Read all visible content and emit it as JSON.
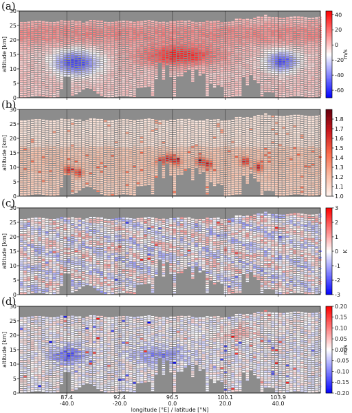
{
  "figure": {
    "shared_x": {
      "label": "longitude [°E] / latitude [°N]",
      "ticks": [
        {
          "longitude": "87.4",
          "latitude": "-40.0"
        },
        {
          "longitude": "92.4",
          "latitude": "-20.0"
        },
        {
          "longitude": "96.5",
          "latitude": "0.0"
        },
        {
          "longitude": "100.1",
          "latitude": "20.0"
        },
        {
          "longitude": "103.9",
          "latitude": "40.0"
        }
      ]
    }
  },
  "colors": {
    "background_missing": "#8c8c8c",
    "grid": "#333333"
  },
  "chart_data": [
    {
      "type": "heatmap",
      "panel": "(a)",
      "ylabel": "altitude [km]",
      "ylim": [
        0,
        30
      ],
      "yticks": [
        0,
        5,
        10,
        15,
        20,
        25,
        30
      ],
      "colormap": "bwr",
      "colorbar": {
        "label": "m/s",
        "vmin": -70,
        "vmax": 45,
        "ticks": [
          40,
          20,
          0,
          -20,
          -40,
          -60
        ]
      },
      "features": [
        {
          "description": "negative core",
          "x_lat": -37,
          "alt_km": 12,
          "value": -55
        },
        {
          "description": "positive core",
          "x_lat": 2,
          "alt_km": 14.5,
          "value": 35
        },
        {
          "description": "negative core",
          "x_lat": 40,
          "alt_km": 12.5,
          "value": -50
        }
      ]
    },
    {
      "type": "heatmap",
      "panel": "(b)",
      "ylabel": "altitude [km]",
      "ylim": [
        0,
        30
      ],
      "yticks": [
        0,
        5,
        10,
        15,
        20,
        25,
        30
      ],
      "colormap": "Reds",
      "colorbar": {
        "label": "",
        "vmin": 1.0,
        "vmax": 1.9,
        "ticks": [
          1.8,
          1.7,
          1.6,
          1.5,
          1.4,
          1.3,
          1.2,
          1.1,
          1.0
        ]
      }
    },
    {
      "type": "heatmap",
      "panel": "(c)",
      "ylabel": "altitude [km]",
      "ylim": [
        0,
        30
      ],
      "yticks": [
        0,
        5,
        10,
        15,
        20,
        25,
        30
      ],
      "colormap": "bwr",
      "colorbar": {
        "label": "K",
        "vmin": -3,
        "vmax": 3,
        "ticks": [
          3,
          2,
          1,
          0,
          -1,
          -2,
          -3
        ]
      }
    },
    {
      "type": "heatmap",
      "panel": "(d)",
      "ylabel": "altitude [km]",
      "ylim": [
        0,
        30
      ],
      "yticks": [
        0,
        5,
        10,
        15,
        20,
        25,
        30
      ],
      "colormap": "bwr",
      "colorbar": {
        "label": "m/s",
        "vmin": -0.2,
        "vmax": 0.2,
        "ticks": [
          0.2,
          0.15,
          0.1,
          0.05,
          0.0,
          -0.05,
          -0.1,
          -0.15,
          -0.2
        ]
      }
    }
  ]
}
